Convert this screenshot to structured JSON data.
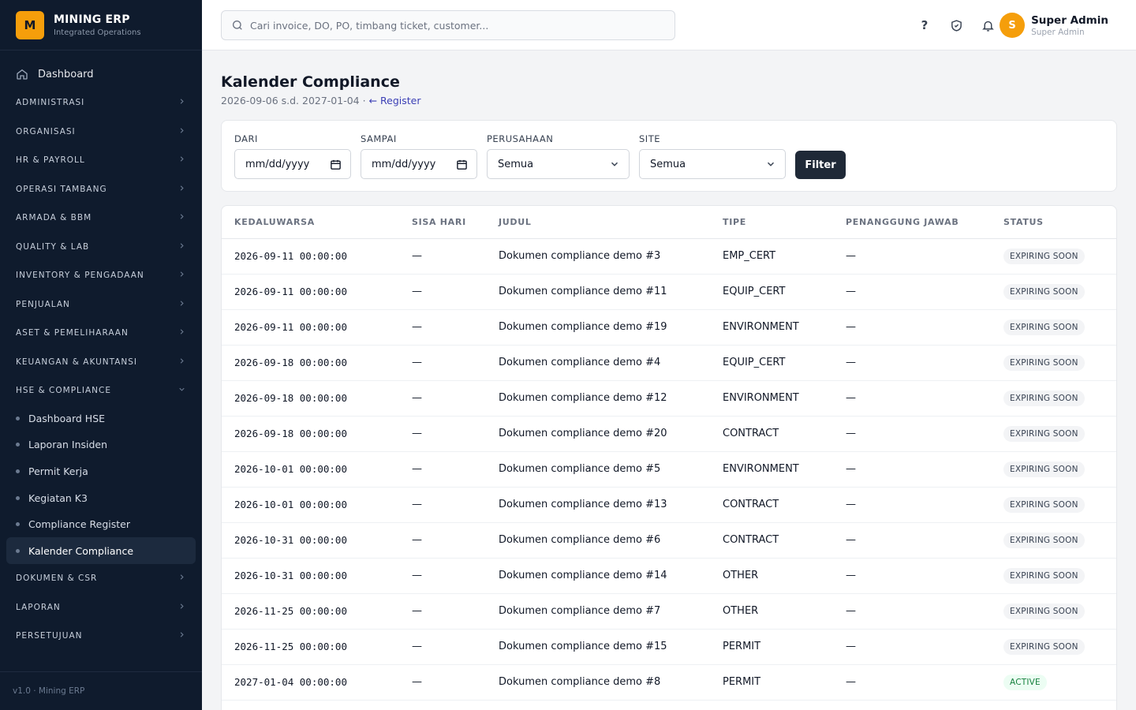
{
  "brand": {
    "logo_letter": "M",
    "name": "MINING ERP",
    "tagline": "Integrated Operations"
  },
  "nav": {
    "dashboard": "Dashboard",
    "groups_top": [
      "ADMINISTRASI",
      "ORGANISASI",
      "HR & PAYROLL",
      "OPERASI TAMBANG",
      "ARMADA & BBM",
      "QUALITY & LAB",
      "INVENTORY & PENGADAAN",
      "PENJUALAN",
      "ASET & PEMELIHARAAN",
      "KEUANGAN & AKUNTANSI"
    ],
    "expanded_group": "HSE & COMPLIANCE",
    "expanded_items": [
      "Dashboard HSE",
      "Laporan Insiden",
      "Permit Kerja",
      "Kegiatan K3",
      "Compliance Register",
      "Kalender Compliance"
    ],
    "active_item": "Kalender Compliance",
    "groups_bottom": [
      "DOKUMEN & CSR",
      "LAPORAN",
      "PERSETUJUAN"
    ],
    "footer": "v1.0 · Mining ERP"
  },
  "topbar": {
    "search_placeholder": "Cari invoice, DO, PO, timbang ticket, customer...",
    "help_glyph": "?",
    "icons": [
      "help-icon",
      "shield-check-icon",
      "bell-icon"
    ],
    "user": {
      "initial": "S",
      "name": "Super Admin",
      "role": "Super Admin"
    }
  },
  "page": {
    "title": "Kalender Compliance",
    "range": "2026-09-06 s.d. 2027-01-04 · ",
    "register_link": "← Register"
  },
  "filters": {
    "from_label": "DARI",
    "from_placeholder": "mm/dd/yyyy",
    "to_label": "SAMPAI",
    "to_placeholder": "mm/dd/yyyy",
    "company_label": "PERUSAHAAN",
    "company_value": "Semua",
    "site_label": "SITE",
    "site_value": "Semua",
    "button": "Filter"
  },
  "table": {
    "headers": [
      "KEDALUWARSA",
      "SISA HARI",
      "JUDUL",
      "TIPE",
      "PENANGGUNG JAWAB",
      "STATUS"
    ],
    "rows": [
      {
        "expiry": "2026-09-11 00:00:00",
        "days": "—",
        "title": "Dokumen compliance demo #3",
        "type": "EMP_CERT",
        "pic": "—",
        "status": "EXPIRING SOON"
      },
      {
        "expiry": "2026-09-11 00:00:00",
        "days": "—",
        "title": "Dokumen compliance demo #11",
        "type": "EQUIP_CERT",
        "pic": "—",
        "status": "EXPIRING SOON"
      },
      {
        "expiry": "2026-09-11 00:00:00",
        "days": "—",
        "title": "Dokumen compliance demo #19",
        "type": "ENVIRONMENT",
        "pic": "—",
        "status": "EXPIRING SOON"
      },
      {
        "expiry": "2026-09-18 00:00:00",
        "days": "—",
        "title": "Dokumen compliance demo #4",
        "type": "EQUIP_CERT",
        "pic": "—",
        "status": "EXPIRING SOON"
      },
      {
        "expiry": "2026-09-18 00:00:00",
        "days": "—",
        "title": "Dokumen compliance demo #12",
        "type": "ENVIRONMENT",
        "pic": "—",
        "status": "EXPIRING SOON"
      },
      {
        "expiry": "2026-09-18 00:00:00",
        "days": "—",
        "title": "Dokumen compliance demo #20",
        "type": "CONTRACT",
        "pic": "—",
        "status": "EXPIRING SOON"
      },
      {
        "expiry": "2026-10-01 00:00:00",
        "days": "—",
        "title": "Dokumen compliance demo #5",
        "type": "ENVIRONMENT",
        "pic": "—",
        "status": "EXPIRING SOON"
      },
      {
        "expiry": "2026-10-01 00:00:00",
        "days": "—",
        "title": "Dokumen compliance demo #13",
        "type": "CONTRACT",
        "pic": "—",
        "status": "EXPIRING SOON"
      },
      {
        "expiry": "2026-10-31 00:00:00",
        "days": "—",
        "title": "Dokumen compliance demo #6",
        "type": "CONTRACT",
        "pic": "—",
        "status": "EXPIRING SOON"
      },
      {
        "expiry": "2026-10-31 00:00:00",
        "days": "—",
        "title": "Dokumen compliance demo #14",
        "type": "OTHER",
        "pic": "—",
        "status": "EXPIRING SOON"
      },
      {
        "expiry": "2026-11-25 00:00:00",
        "days": "—",
        "title": "Dokumen compliance demo #7",
        "type": "OTHER",
        "pic": "—",
        "status": "EXPIRING SOON"
      },
      {
        "expiry": "2026-11-25 00:00:00",
        "days": "—",
        "title": "Dokumen compliance demo #15",
        "type": "PERMIT",
        "pic": "—",
        "status": "EXPIRING SOON"
      },
      {
        "expiry": "2027-01-04 00:00:00",
        "days": "—",
        "title": "Dokumen compliance demo #8",
        "type": "PERMIT",
        "pic": "—",
        "status": "ACTIVE"
      }
    ]
  },
  "colors": {
    "sidebar_bg": "#0f1b2d",
    "accent": "#f59e0b",
    "link": "#3b3fb5",
    "active_badge": "#15803d"
  }
}
